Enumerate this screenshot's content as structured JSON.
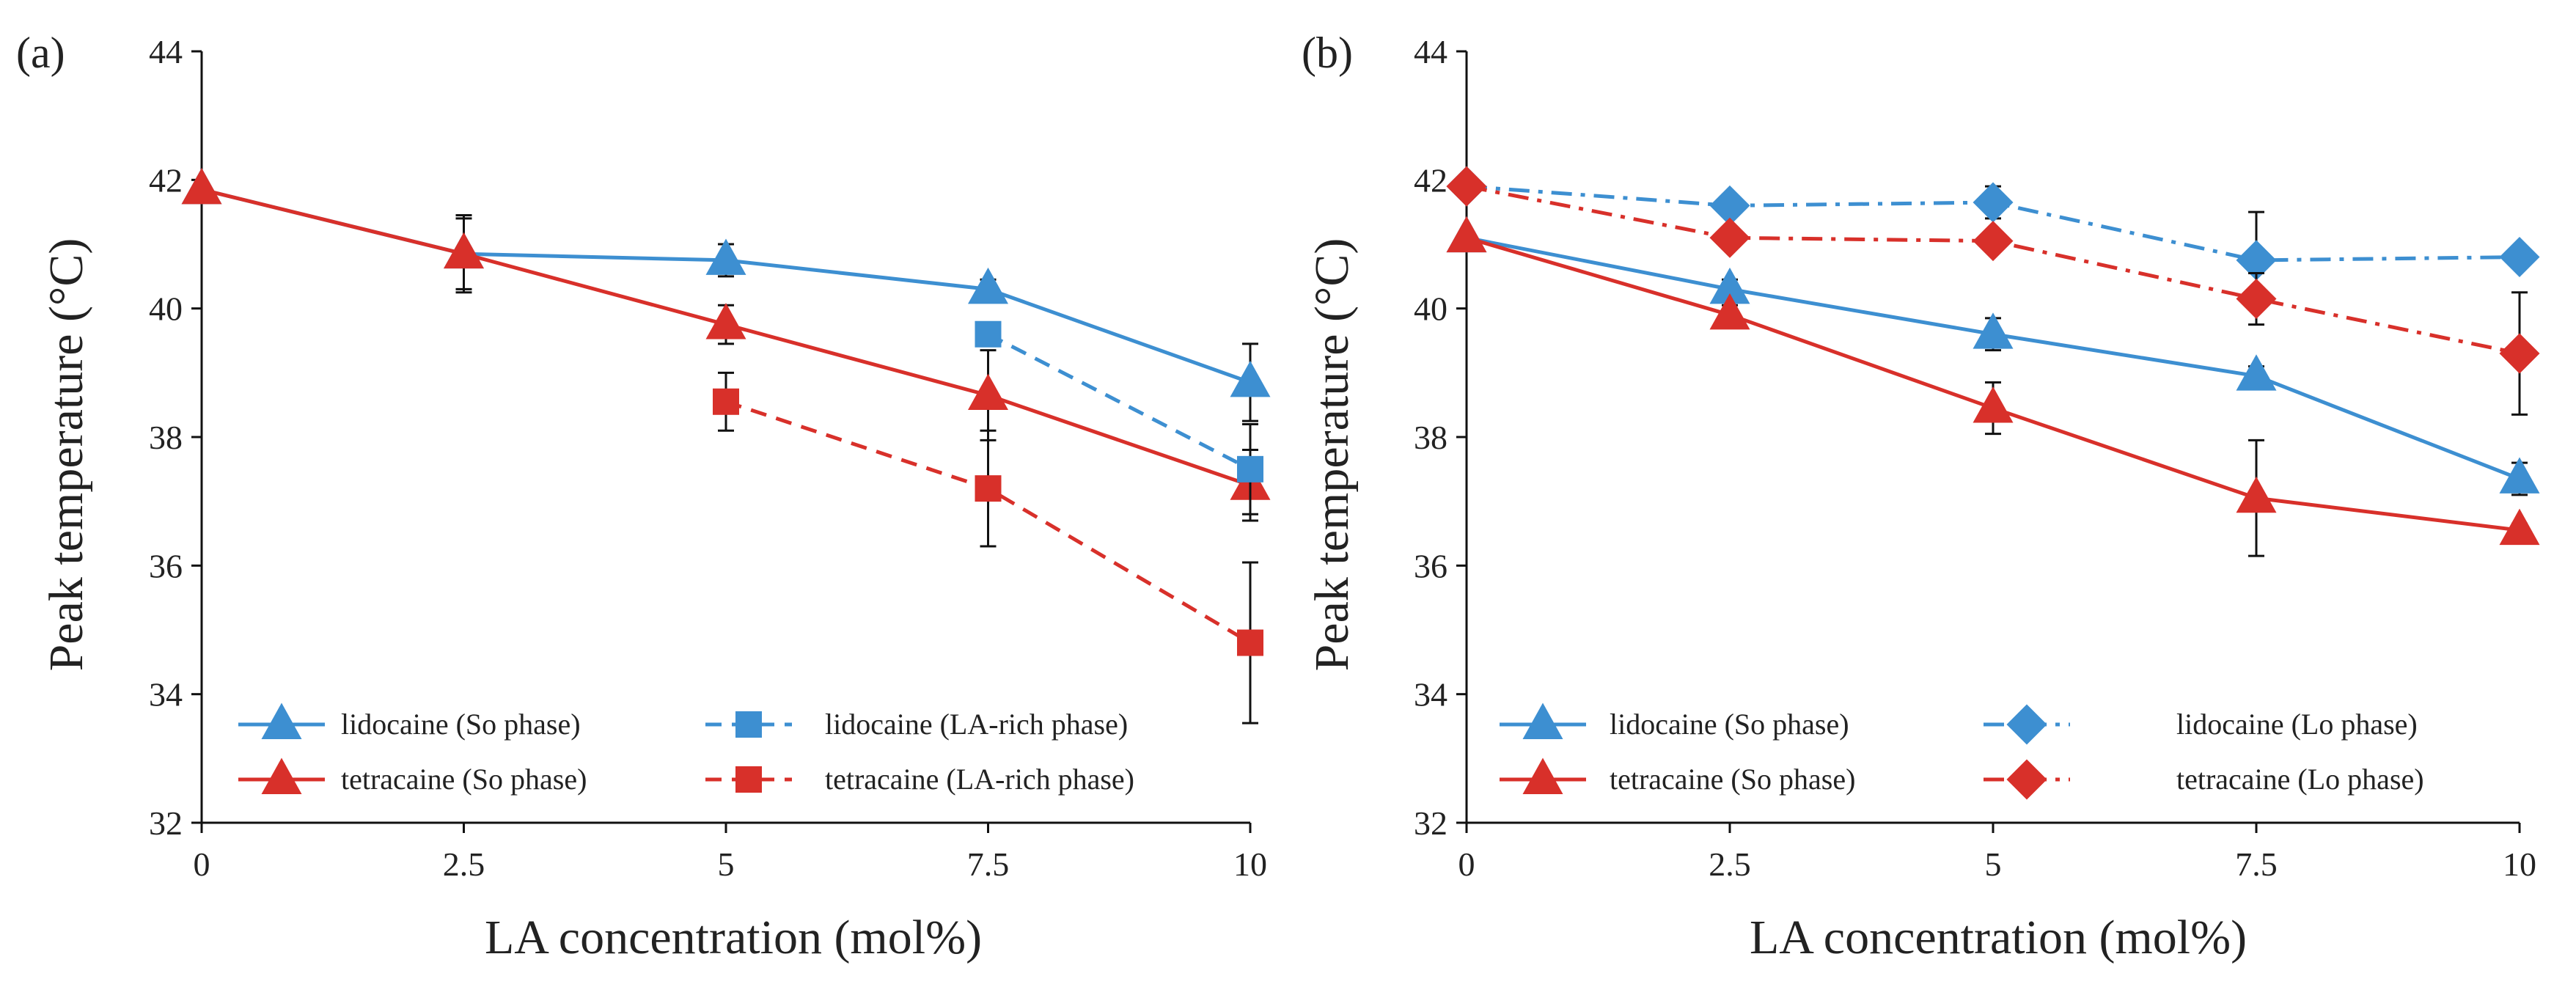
{
  "colors": {
    "lidocaine": "#3d8fd1",
    "tetracaine": "#d8302a",
    "axis": "#111111",
    "errbar": "#111111"
  },
  "chart_data": [
    {
      "type": "line",
      "panel_label": "(a)",
      "xlabel": "LA concentration (mol%)",
      "ylabel": "Peak temperature (°C)",
      "ylim": [
        32,
        44
      ],
      "xlim": [
        0,
        10
      ],
      "x_ticks": [
        "0",
        "2.5",
        "5",
        "7.5",
        "10"
      ],
      "y_ticks": [
        "32",
        "34",
        "36",
        "38",
        "40",
        "42",
        "44"
      ],
      "grid": false,
      "legend_position": "bottom",
      "series": [
        {
          "name": "lidocaine (So phase)",
          "color_key": "lidocaine",
          "marker": "triangle",
          "dash": "solid",
          "x": [
            0,
            2.5,
            5,
            7.5,
            10
          ],
          "y": [
            41.85,
            40.85,
            40.75,
            40.3,
            38.85
          ],
          "err": [
            0,
            0.55,
            0.25,
            0.15,
            0.6
          ]
        },
        {
          "name": "tetracaine (So phase)",
          "color_key": "tetracaine",
          "marker": "triangle",
          "dash": "solid",
          "x": [
            0,
            2.5,
            5,
            7.5,
            10
          ],
          "y": [
            41.85,
            40.85,
            39.75,
            38.65,
            37.25
          ],
          "err": [
            0,
            0.6,
            0.3,
            0.7,
            0.55
          ]
        },
        {
          "name": "lidocaine (LA-rich phase)",
          "color_key": "lidocaine",
          "marker": "square",
          "dash": "dashed",
          "x": [
            7.5,
            10
          ],
          "y": [
            39.6,
            37.5
          ],
          "err": [
            0,
            0.7
          ]
        },
        {
          "name": "tetracaine (LA-rich phase)",
          "color_key": "tetracaine",
          "marker": "square",
          "dash": "dashed",
          "x": [
            5,
            7.5,
            10
          ],
          "y": [
            38.55,
            37.2,
            34.8
          ],
          "err": [
            0.45,
            0.9,
            1.25
          ]
        }
      ]
    },
    {
      "type": "line",
      "panel_label": "(b)",
      "xlabel": "LA concentration (mol%)",
      "ylabel": "Peak temperature (°C)",
      "ylim": [
        32,
        44
      ],
      "xlim": [
        0,
        10
      ],
      "x_ticks": [
        "0",
        "2.5",
        "5",
        "7.5",
        "10"
      ],
      "y_ticks": [
        "32",
        "34",
        "36",
        "38",
        "40",
        "42",
        "44"
      ],
      "grid": false,
      "legend_position": "bottom",
      "series": [
        {
          "name": "lidocaine (So phase)",
          "color_key": "lidocaine",
          "marker": "triangle",
          "dash": "solid",
          "x": [
            0,
            2.5,
            5,
            7.5,
            10
          ],
          "y": [
            41.1,
            40.3,
            39.6,
            38.95,
            37.35
          ],
          "err": [
            0,
            0.15,
            0.25,
            0.15,
            0.25
          ]
        },
        {
          "name": "tetracaine (So phase)",
          "color_key": "tetracaine",
          "marker": "triangle",
          "dash": "solid",
          "x": [
            0,
            2.5,
            5,
            7.5,
            10
          ],
          "y": [
            41.1,
            39.9,
            38.45,
            37.05,
            36.55
          ],
          "err": [
            0,
            0.15,
            0.4,
            0.9,
            0.1
          ]
        },
        {
          "name": "lidocaine (Lo phase)",
          "color_key": "lidocaine",
          "marker": "diamond",
          "dash": "dashdot",
          "x": [
            0,
            2.5,
            5,
            7.5,
            10
          ],
          "y": [
            41.9,
            41.6,
            41.65,
            40.75,
            40.8
          ],
          "err": [
            0,
            0.1,
            0.25,
            0.75,
            0
          ]
        },
        {
          "name": "tetracaine (Lo phase)",
          "color_key": "tetracaine",
          "marker": "diamond",
          "dash": "dashdot",
          "x": [
            0,
            2.5,
            5,
            7.5,
            10
          ],
          "y": [
            41.9,
            41.1,
            41.05,
            40.15,
            39.3
          ],
          "err": [
            0,
            0.1,
            0.1,
            0.4,
            0.95
          ]
        }
      ]
    }
  ]
}
